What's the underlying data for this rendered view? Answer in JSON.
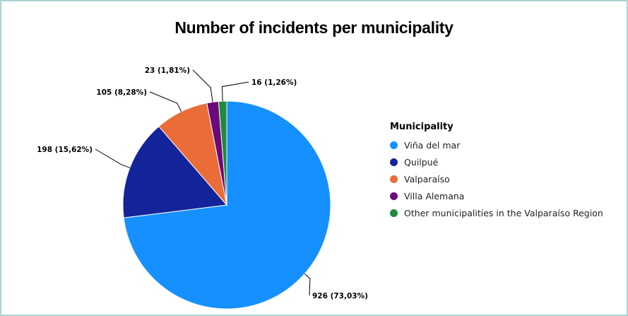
{
  "chart_data": {
    "type": "pie",
    "title": "Number of incidents per municipality",
    "legend_title": "Municipality",
    "legend_position": "right",
    "slices": [
      {
        "name": "Viña del mar",
        "value": 926,
        "label": "926 (73,03%)",
        "color": "#1690ff"
      },
      {
        "name": "Quilpué",
        "value": 198,
        "label": "198 (15,62%)",
        "color": "#13239a"
      },
      {
        "name": "Valparaíso",
        "value": 105,
        "label": "105 (8,28%)",
        "color": "#ea6c38"
      },
      {
        "name": "Villa Alemana",
        "value": 23,
        "label": "23 (1,81%)",
        "color": "#6c0a7a"
      },
      {
        "name": "Other municipalities in the Valparaíso Region",
        "value": 16,
        "label": "16 (1,26%)",
        "color": "#1e8a3a"
      }
    ]
  }
}
